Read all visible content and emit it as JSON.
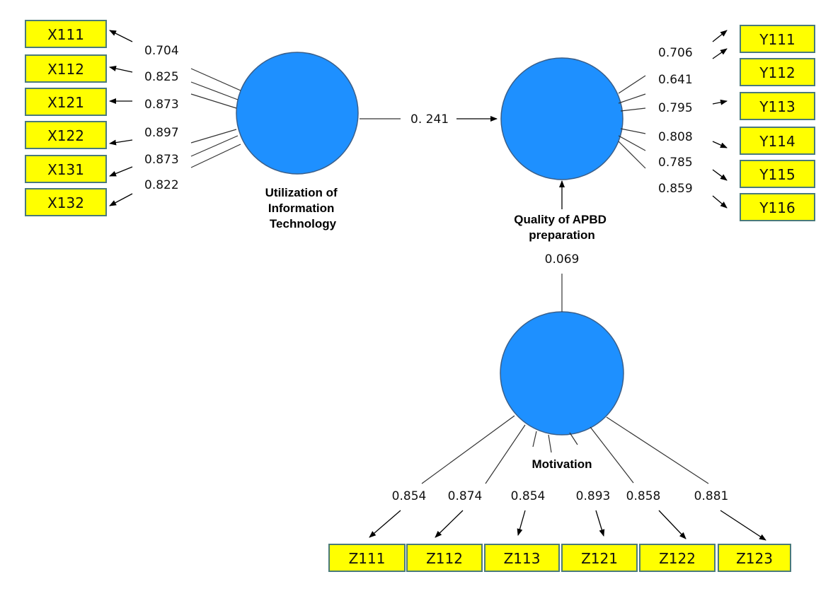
{
  "latents": {
    "it": {
      "label_lines": [
        "Utilization of",
        "Information",
        "Technology"
      ]
    },
    "q": {
      "label_lines": [
        "Quality of APBD",
        "preparation"
      ]
    },
    "m": {
      "label_lines": [
        "Motivation"
      ]
    }
  },
  "paths": {
    "it_to_q": "0. 241",
    "m_to_q": "0.069"
  },
  "indicators": {
    "x": [
      {
        "name": "X111",
        "loading": "0.704"
      },
      {
        "name": "X112",
        "loading": "0.825"
      },
      {
        "name": "X121",
        "loading": "0.873"
      },
      {
        "name": "X122",
        "loading": "0.897"
      },
      {
        "name": "X131",
        "loading": "0.873"
      },
      {
        "name": "X132",
        "loading": "0.822"
      }
    ],
    "y": [
      {
        "name": "Y111",
        "loading": "0.706"
      },
      {
        "name": "Y112",
        "loading": "0.641"
      },
      {
        "name": "Y113",
        "loading": "0.795"
      },
      {
        "name": "Y114",
        "loading": "0.808"
      },
      {
        "name": "Y115",
        "loading": "0.785"
      },
      {
        "name": "Y116",
        "loading": "0.859"
      }
    ],
    "z": [
      {
        "name": "Z111",
        "loading": "0.854"
      },
      {
        "name": "Z112",
        "loading": "0.874"
      },
      {
        "name": "Z113",
        "loading": "0.854"
      },
      {
        "name": "Z121",
        "loading": "0.893"
      },
      {
        "name": "Z122",
        "loading": "0.858"
      },
      {
        "name": "Z123",
        "loading": "0.881"
      }
    ]
  },
  "colors": {
    "latent_fill": "#1e90ff",
    "indicator_fill": "#ffff00",
    "indicator_border": "#4a7a7a"
  }
}
